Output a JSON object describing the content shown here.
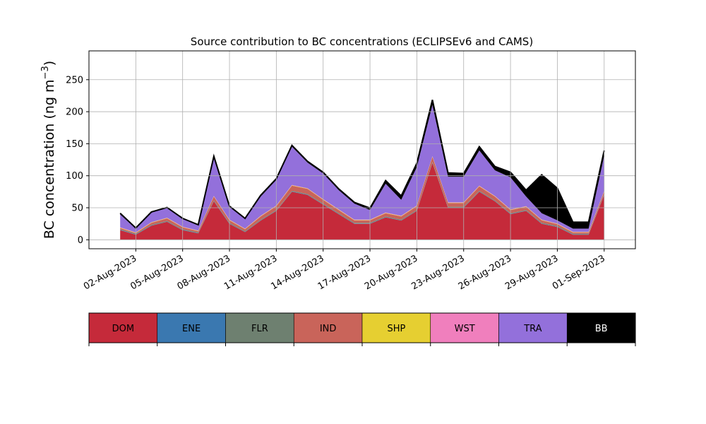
{
  "chart_data": {
    "type": "area",
    "stacked": true,
    "title": "Source contribution to BC concentrations (ECLIPSEv6 and CAMS)",
    "ylabel": "BC concentration (ng m",
    "ylabel_sup": "−3",
    "ylabel_close": ")",
    "xlabel": "",
    "xlim": [
      "2023-07-30",
      "2023-09-03"
    ],
    "ylim": [
      -14,
      295
    ],
    "yticks": [
      0,
      50,
      100,
      150,
      200,
      250
    ],
    "xticks": [
      {
        "date": "2023-08-02",
        "label": "02-Aug-2023"
      },
      {
        "date": "2023-08-05",
        "label": "05-Aug-2023"
      },
      {
        "date": "2023-08-08",
        "label": "08-Aug-2023"
      },
      {
        "date": "2023-08-11",
        "label": "11-Aug-2023"
      },
      {
        "date": "2023-08-14",
        "label": "14-Aug-2023"
      },
      {
        "date": "2023-08-17",
        "label": "17-Aug-2023"
      },
      {
        "date": "2023-08-20",
        "label": "20-Aug-2023"
      },
      {
        "date": "2023-08-23",
        "label": "23-Aug-2023"
      },
      {
        "date": "2023-08-26",
        "label": "26-Aug-2023"
      },
      {
        "date": "2023-08-29",
        "label": "29-Aug-2023"
      },
      {
        "date": "2023-09-01",
        "label": "01-Sep-2023"
      }
    ],
    "grid": true,
    "legend_position": "below",
    "x": [
      "2023-08-01",
      "2023-08-02",
      "2023-08-03",
      "2023-08-04",
      "2023-08-05",
      "2023-08-06",
      "2023-08-07",
      "2023-08-08",
      "2023-08-09",
      "2023-08-10",
      "2023-08-11",
      "2023-08-12",
      "2023-08-13",
      "2023-08-14",
      "2023-08-15",
      "2023-08-16",
      "2023-08-17",
      "2023-08-18",
      "2023-08-19",
      "2023-08-20",
      "2023-08-21",
      "2023-08-22",
      "2023-08-23",
      "2023-08-24",
      "2023-08-25",
      "2023-08-26",
      "2023-08-27",
      "2023-08-28",
      "2023-08-29",
      "2023-08-30",
      "2023-08-31",
      "2023-09-01"
    ],
    "series": [
      {
        "name": "DOM",
        "color": "#c52a3a",
        "values": [
          15,
          8,
          22,
          28,
          15,
          10,
          60,
          25,
          12,
          30,
          45,
          75,
          70,
          55,
          40,
          25,
          25,
          35,
          30,
          45,
          120,
          50,
          50,
          75,
          60,
          40,
          45,
          25,
          20,
          8,
          8,
          70
        ]
      },
      {
        "name": "ENE",
        "color": "#3a78b0",
        "values": [
          0.5,
          0.5,
          0.5,
          0.5,
          0.5,
          0.5,
          0.5,
          0.5,
          0.5,
          0.5,
          0.5,
          0.5,
          0.5,
          0.5,
          0.5,
          0.5,
          0.5,
          0.5,
          0.5,
          0.5,
          0.5,
          0.5,
          0.5,
          0.5,
          0.5,
          0.5,
          0.5,
          0.5,
          0.5,
          0.5,
          0.5,
          0.5
        ]
      },
      {
        "name": "FLR",
        "color": "#6e8070",
        "values": [
          1,
          1,
          1,
          1,
          1,
          1,
          1,
          1,
          1,
          1,
          1,
          1,
          1,
          1,
          1,
          1,
          1,
          1,
          1,
          1,
          1,
          1,
          1,
          1,
          1,
          1,
          1,
          1,
          1,
          1,
          1,
          1
        ]
      },
      {
        "name": "IND",
        "color": "#c9645a",
        "values": [
          2,
          1,
          3,
          4,
          3,
          2,
          6,
          4,
          3,
          5,
          6,
          8,
          8,
          6,
          5,
          4,
          4,
          5,
          5,
          6,
          8,
          6,
          6,
          7,
          6,
          5,
          5,
          4,
          3,
          2,
          2,
          4
        ]
      },
      {
        "name": "SHP",
        "color": "#e6cf31",
        "values": [
          0.5,
          0.5,
          0.5,
          0.5,
          0.5,
          0.5,
          0.5,
          0.5,
          0.5,
          0.5,
          0.5,
          0.5,
          0.5,
          0.5,
          0.5,
          0.5,
          0.5,
          0.5,
          0.5,
          0.5,
          0.5,
          0.5,
          0.5,
          0.5,
          0.5,
          0.5,
          0.5,
          0.5,
          0.5,
          0.5,
          0.5,
          0.5
        ]
      },
      {
        "name": "WST",
        "color": "#f07fbd",
        "values": [
          0.5,
          0.5,
          0.5,
          0.5,
          0.5,
          0.5,
          0.5,
          0.5,
          0.5,
          0.5,
          0.5,
          0.5,
          0.5,
          0.5,
          0.5,
          0.5,
          0.5,
          0.5,
          0.5,
          0.5,
          0.5,
          0.5,
          0.5,
          0.5,
          0.5,
          0.5,
          0.5,
          0.5,
          0.5,
          0.5,
          0.5,
          0.5
        ]
      },
      {
        "name": "TRA",
        "color": "#9370db",
        "values": [
          20,
          6,
          15,
          15,
          12,
          8,
          60,
          20,
          15,
          30,
          40,
          60,
          40,
          40,
          30,
          25,
          15,
          45,
          25,
          60,
          80,
          40,
          40,
          55,
          40,
          50,
          15,
          10,
          5,
          5,
          5,
          55
        ]
      },
      {
        "name": "BB",
        "color": "#000000",
        "values": [
          2,
          1,
          1,
          1,
          1,
          1,
          2,
          1,
          1,
          2,
          2,
          2,
          2,
          2,
          2,
          2,
          3,
          5,
          6,
          6,
          8,
          6,
          5,
          6,
          6,
          8,
          10,
          60,
          50,
          10,
          10,
          8
        ]
      }
    ]
  }
}
